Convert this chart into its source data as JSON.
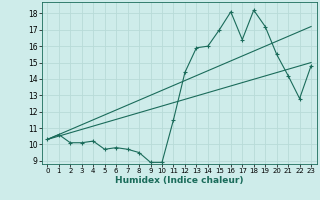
{
  "xlabel": "Humidex (Indice chaleur)",
  "background_color": "#ceecea",
  "grid_color": "#b8dbd8",
  "line_color": "#1a6b5a",
  "xlim": [
    -0.5,
    23.5
  ],
  "ylim": [
    8.8,
    18.7
  ],
  "yticks": [
    9,
    10,
    11,
    12,
    13,
    14,
    15,
    16,
    17,
    18
  ],
  "xticks": [
    0,
    1,
    2,
    3,
    4,
    5,
    6,
    7,
    8,
    9,
    10,
    11,
    12,
    13,
    14,
    15,
    16,
    17,
    18,
    19,
    20,
    21,
    22,
    23
  ],
  "series_zigzag": {
    "x": [
      0,
      1,
      2,
      3,
      4,
      5,
      6,
      7,
      8,
      9,
      10,
      11,
      12,
      13,
      14,
      15,
      16,
      17,
      18,
      19,
      20,
      21,
      22,
      23
    ],
    "y": [
      10.3,
      10.6,
      10.1,
      10.1,
      10.2,
      9.7,
      9.8,
      9.7,
      9.5,
      8.9,
      8.9,
      11.5,
      14.4,
      15.9,
      16.0,
      17.0,
      18.1,
      16.4,
      18.2,
      17.2,
      15.5,
      14.2,
      12.8,
      14.8
    ]
  },
  "series_line1": {
    "x": [
      0,
      23
    ],
    "y": [
      10.3,
      17.2
    ]
  },
  "series_line2": {
    "x": [
      0,
      23
    ],
    "y": [
      10.3,
      15.0
    ]
  }
}
